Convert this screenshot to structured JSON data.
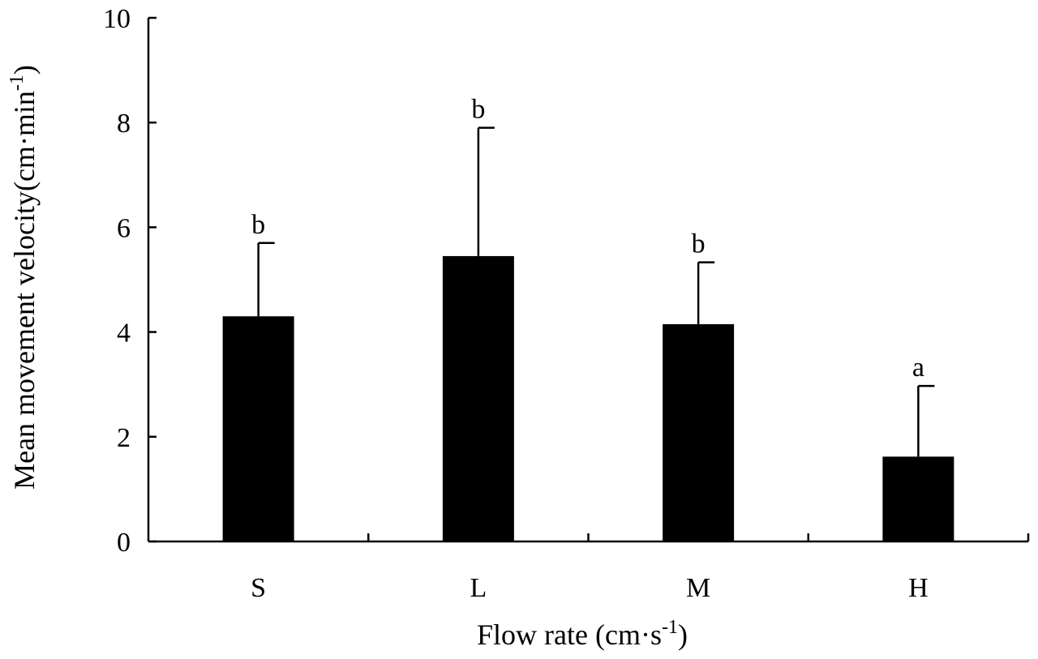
{
  "chart_data": {
    "type": "bar",
    "categories": [
      "S",
      "L",
      "M",
      "H"
    ],
    "values": [
      4.3,
      5.45,
      4.15,
      1.62
    ],
    "errors": [
      1.4,
      2.45,
      1.18,
      1.35
    ],
    "significance_labels": [
      "b",
      "b",
      "b",
      "a"
    ],
    "xlabel": "Flow rate (cm·s-1)",
    "ylabel": "Mean movement velocity(cm·min-1)",
    "ylim": [
      0,
      10
    ],
    "yticks": [
      0,
      2,
      4,
      6,
      8,
      10
    ],
    "grid": false,
    "bar_color": "#000000"
  }
}
